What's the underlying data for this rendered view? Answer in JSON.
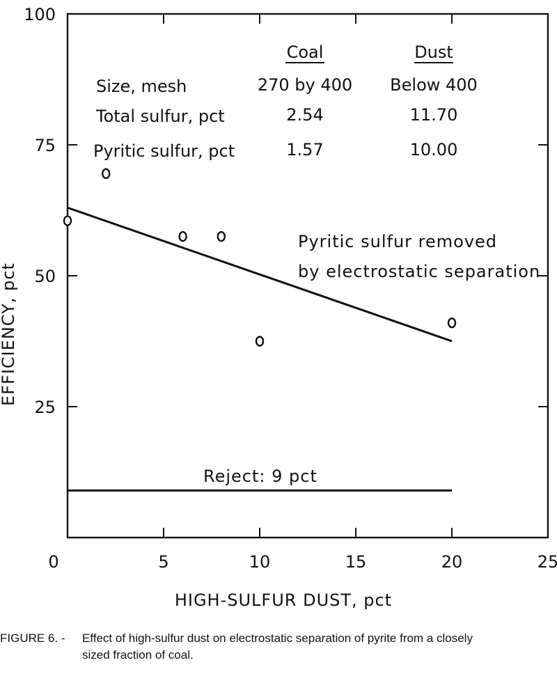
{
  "chart_data": {
    "type": "scatter",
    "xlabel": "HIGH-SULFUR DUST, pct",
    "ylabel": "EFFICIENCY, pct",
    "xlim": [
      0,
      25
    ],
    "ylim": [
      0,
      100
    ],
    "xticks": [
      "0",
      "5",
      "10",
      "15",
      "20",
      "25"
    ],
    "yticks": [
      "25",
      "50",
      "75",
      "100"
    ],
    "grid": false,
    "series": [
      {
        "name": "Pyritic sulfur removed by electrostatic separation",
        "points": [
          {
            "x": 0,
            "y": 60.5
          },
          {
            "x": 2,
            "y": 69.5
          },
          {
            "x": 6,
            "y": 57.5
          },
          {
            "x": 8,
            "y": 57.5
          },
          {
            "x": 10,
            "y": 37.5
          },
          {
            "x": 20,
            "y": 41
          }
        ],
        "fit_line": [
          {
            "x": 0,
            "y": 63
          },
          {
            "x": 20,
            "y": 37.5
          }
        ]
      },
      {
        "name": "Reject: 9 pct",
        "line": [
          {
            "x": 0,
            "y": 9
          },
          {
            "x": 20,
            "y": 9
          }
        ]
      }
    ],
    "annotations": {
      "fit_label_1": "Pyritic sulfur removed",
      "fit_label_2": "by electrostatic separation",
      "reject_label": "Reject: 9 pct"
    },
    "table": {
      "columns": [
        "Coal",
        "Dust"
      ],
      "rows": [
        {
          "label": "Size, mesh",
          "coal": "270 by 400",
          "dust": "Below 400"
        },
        {
          "label": "Total sulfur, pct",
          "coal": "2.54",
          "dust": "11.70"
        },
        {
          "label": "Pyritic sulfur, pct",
          "coal": "1.57",
          "dust": "10.00"
        }
      ]
    }
  },
  "caption": {
    "label": "FIGURE 6. -",
    "line1": "Effect of high-sulfur dust on electrostatic separation of pyrite from a closely",
    "line2": "sized fraction of coal."
  }
}
